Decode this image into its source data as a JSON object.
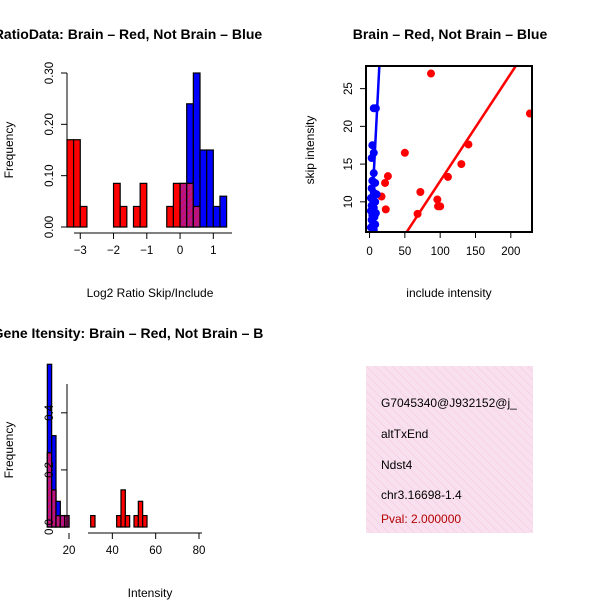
{
  "colors": {
    "brain": "#ff0000",
    "not_brain": "#0000ff",
    "overlap": "#b2158c",
    "info_bg": "#f9e0ef",
    "pval_text": "#b30000"
  },
  "chart_data": [
    {
      "id": "ratio-hist",
      "type": "bar",
      "subtype": "overlaid-histogram",
      "title": "RatioData: Brain – Red, Not Brain – Blue",
      "xlabel": "Log2 Ratio Skip/Include",
      "ylabel": "Frequency",
      "xlim": [
        -3.45,
        1.7
      ],
      "ylim": [
        0,
        0.3
      ],
      "xticks": [
        -3,
        -2,
        -1,
        0,
        1
      ],
      "xtick_labels": [
        "−3",
        "−2",
        "−1",
        "0",
        "1"
      ],
      "yticks": [
        0.0,
        0.1,
        0.2,
        0.3
      ],
      "ytick_labels": [
        "0.00",
        "0.10",
        "0.20",
        "0.30"
      ],
      "bin_edges": [
        -3.4,
        -3.2,
        -3.0,
        -2.8,
        -2.6,
        -2.4,
        -2.2,
        -2.0,
        -1.8,
        -1.6,
        -1.4,
        -1.2,
        -1.0,
        -0.8,
        -0.6,
        -0.4,
        -0.2,
        0.0,
        0.2,
        0.4,
        0.6,
        0.8,
        1.0,
        1.2,
        1.4
      ],
      "series": [
        {
          "name": "Not Brain",
          "color_key": "not_brain",
          "values": [
            0,
            0,
            0,
            0,
            0,
            0,
            0,
            0,
            0,
            0,
            0,
            0,
            0,
            0,
            0,
            0,
            0,
            0.04,
            0.24,
            0.3,
            0.15,
            0.15,
            0.04,
            0.06
          ]
        },
        {
          "name": "Brain",
          "color_key": "brain",
          "values": [
            0.17,
            0.17,
            0.04,
            0,
            0,
            0,
            0,
            0.085,
            0.04,
            0,
            0.04,
            0.085,
            0,
            0,
            0,
            0.04,
            0.085,
            0.085,
            0.085,
            0.04,
            0,
            0,
            0,
            0
          ]
        }
      ]
    },
    {
      "id": "scatter",
      "type": "scatter",
      "title": "Brain – Red, Not Brain – Blue",
      "xlabel": "include intensity",
      "ylabel": "skip intensity",
      "xlim": [
        -5,
        230
      ],
      "ylim": [
        6,
        28
      ],
      "xticks": [
        0,
        50,
        100,
        150,
        200
      ],
      "xtick_labels": [
        "0",
        "50",
        "100",
        "150",
        "200"
      ],
      "yticks": [
        10,
        15,
        20,
        25
      ],
      "ytick_labels": [
        "10",
        "15",
        "20",
        "25"
      ],
      "series": [
        {
          "name": "Brain",
          "color_key": "brain",
          "points": [
            [
              87,
              27
            ],
            [
              227,
              21.7
            ],
            [
              140,
              17.6
            ],
            [
              50,
              16.5
            ],
            [
              130,
              15
            ],
            [
              111,
              13.3
            ],
            [
              26,
              13.4
            ],
            [
              22,
              12.5
            ],
            [
              72,
              11.3
            ],
            [
              17,
              10.7
            ],
            [
              96,
              10.3
            ],
            [
              97,
              9.4
            ],
            [
              100,
              9.4
            ],
            [
              23,
              9
            ],
            [
              68,
              8.4
            ]
          ],
          "fit_line": {
            "intercept": -1.5,
            "slope": 0.1425
          }
        },
        {
          "name": "Not Brain",
          "color_key": "not_brain",
          "points": [
            [
              6,
              22.4
            ],
            [
              9,
              22.4
            ],
            [
              4,
              17.5
            ],
            [
              6,
              16.5
            ],
            [
              3,
              15.8
            ],
            [
              6,
              13.8
            ],
            [
              4,
              12.8
            ],
            [
              8,
              12.5
            ],
            [
              3,
              11.8
            ],
            [
              6,
              11.2
            ],
            [
              10,
              11
            ],
            [
              2,
              10.5
            ],
            [
              5,
              10.2
            ],
            [
              8,
              10
            ],
            [
              3,
              9.5
            ],
            [
              6,
              9.2
            ],
            [
              2,
              8.8
            ],
            [
              9,
              8.5
            ],
            [
              4,
              8.2
            ],
            [
              7,
              8
            ],
            [
              3,
              7.6
            ],
            [
              5,
              7.2
            ],
            [
              8,
              7
            ],
            [
              2,
              6.6
            ],
            [
              6,
              6.3
            ]
          ],
          "fit_line": {
            "intercept": 3.0,
            "slope": 1.8
          }
        }
      ]
    },
    {
      "id": "intensity-hist",
      "type": "bar",
      "subtype": "overlaid-histogram",
      "title": "Gene Itensity: Brain – Red, Not Brain – B",
      "xlabel": "Intensity",
      "ylabel": "Frequency",
      "xlim": [
        8,
        98
      ],
      "ylim": [
        0,
        0.55
      ],
      "xticks": [
        20,
        40,
        60,
        80
      ],
      "xtick_labels": [
        "20",
        "40",
        "60",
        "80"
      ],
      "yticks": [
        0.0,
        0.2,
        0.4
      ],
      "ytick_labels": [
        "0.0",
        "0.2",
        "0.4"
      ],
      "bin_edges": [
        10,
        12,
        14,
        16,
        18,
        20,
        22,
        24,
        26,
        28,
        30,
        32,
        34,
        36,
        38,
        40,
        42,
        44,
        46,
        48,
        50,
        52,
        54,
        56,
        58,
        60,
        62,
        64,
        66,
        68,
        70,
        72,
        74,
        76,
        78,
        80,
        82,
        84,
        86,
        88,
        90,
        92,
        94,
        96
      ],
      "series": [
        {
          "name": "Not Brain",
          "color_key": "not_brain",
          "values": [
            0.57,
            0.32,
            0.09,
            0.04,
            0.04,
            0,
            0,
            0,
            0,
            0,
            0,
            0,
            0,
            0,
            0,
            0,
            0,
            0,
            0,
            0,
            0,
            0,
            0,
            0,
            0,
            0,
            0,
            0,
            0,
            0,
            0,
            0,
            0,
            0,
            0,
            0,
            0,
            0,
            0,
            0,
            0,
            0,
            0
          ]
        },
        {
          "name": "Brain",
          "color_key": "brain",
          "values": [
            0.26,
            0.13,
            0.04,
            0.04,
            0.04,
            0,
            0,
            0,
            0,
            0,
            0.04,
            0,
            0,
            0,
            0,
            0,
            0.04,
            0.13,
            0.04,
            0,
            0.04,
            0.09,
            0.04,
            0,
            0,
            0,
            0,
            0,
            0,
            0,
            0,
            0,
            0,
            0,
            0,
            0,
            0,
            0,
            0,
            0,
            0,
            0,
            0
          ]
        }
      ]
    }
  ],
  "info_box": {
    "gene_id": "G7045340@J932152@j_",
    "event_type": "altTxEnd",
    "gene_symbol": "Ndst4",
    "locus": "chr3.16698-1.4",
    "pval": "Pval: 2.000000"
  }
}
